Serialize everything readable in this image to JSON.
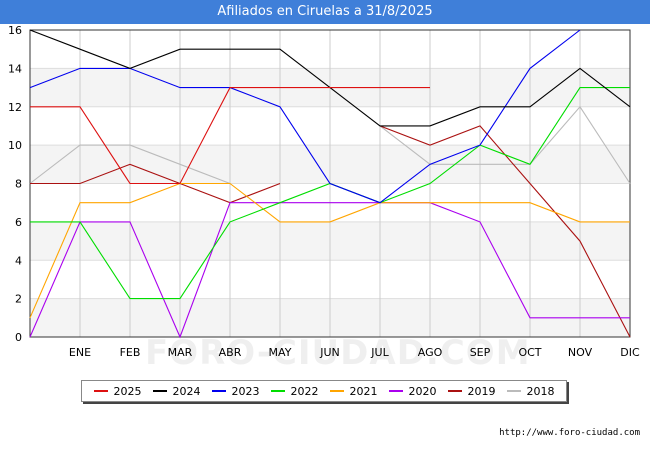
{
  "title": "Afiliados en Ciruelas a 31/8/2025",
  "source": "http://www.foro-ciudad.com",
  "watermark": "FORO-CIUDAD.COM",
  "chart_data": {
    "type": "line",
    "title": "Afiliados en Ciruelas a 31/8/2025",
    "categories": [
      "",
      "ENE",
      "FEB",
      "MAR",
      "ABR",
      "MAY",
      "JUN",
      "JUL",
      "AGO",
      "SEP",
      "OCT",
      "NOV",
      "DIC"
    ],
    "ylim": [
      0,
      16
    ],
    "yticks": [
      0,
      2,
      4,
      6,
      8,
      10,
      12,
      14,
      16
    ],
    "grid": true,
    "legend_position": "bottom",
    "series": [
      {
        "name": "2025",
        "color": "#dd1111",
        "values": [
          12,
          12,
          8,
          8,
          13,
          13,
          13,
          13,
          13,
          null,
          null,
          null,
          null
        ]
      },
      {
        "name": "2024",
        "color": "#000000",
        "values": [
          16,
          15,
          14,
          15,
          15,
          15,
          13,
          11,
          11,
          12,
          12,
          14,
          12
        ]
      },
      {
        "name": "2023",
        "color": "#0000ee",
        "values": [
          13,
          14,
          14,
          13,
          13,
          12,
          8,
          7,
          9,
          10,
          14,
          16,
          null
        ]
      },
      {
        "name": "2022",
        "color": "#00dd00",
        "values": [
          6,
          6,
          2,
          2,
          6,
          7,
          8,
          7,
          8,
          10,
          9,
          13,
          13
        ]
      },
      {
        "name": "2021",
        "color": "#ffa500",
        "values": [
          1,
          7,
          7,
          8,
          8,
          6,
          6,
          7,
          7,
          7,
          7,
          6,
          6
        ]
      },
      {
        "name": "2020",
        "color": "#aa00ee",
        "values": [
          0,
          6,
          6,
          0,
          7,
          7,
          7,
          7,
          7,
          6,
          1,
          1,
          1
        ]
      },
      {
        "name": "2019",
        "color": "#aa1111",
        "values": [
          8,
          8,
          9,
          8,
          7,
          8,
          null,
          11,
          10,
          11,
          8,
          5,
          0
        ]
      },
      {
        "name": "2018",
        "color": "#bbbbbb",
        "values": [
          8,
          10,
          10,
          9,
          8,
          null,
          null,
          11,
          9,
          9,
          9,
          12,
          8
        ]
      }
    ]
  }
}
